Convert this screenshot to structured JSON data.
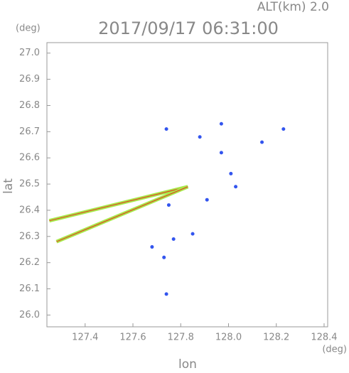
{
  "chart_data": {
    "type": "scatter",
    "title": "2017/09/17 06:31:00",
    "subtitle": "ALT(km) 2.0",
    "y_unit": "(deg)",
    "x_unit": "(deg)",
    "ylabel": "lat",
    "xlabel": "lon",
    "xlim": [
      127.24,
      128.415
    ],
    "ylim": [
      25.955,
      27.04
    ],
    "xticks": [
      127.4,
      127.6,
      127.8,
      {
        "value": 128,
        "label": "128.0"
      },
      128.2,
      128.4
    ],
    "yticks": [
      {
        "value": 26,
        "label": "26.0"
      },
      26.1,
      26.2,
      26.3,
      26.4,
      26.5,
      26.6,
      26.7,
      26.8,
      26.9,
      {
        "value": 27,
        "label": "27.0"
      }
    ],
    "series": [
      {
        "type": "line",
        "color": "#a8e84a",
        "x": [
          127.25,
          127.83
        ],
        "y": [
          26.36,
          26.49
        ]
      },
      {
        "type": "line",
        "color": "#a8e84a",
        "x": [
          127.28,
          127.83
        ],
        "y": [
          26.28,
          26.49
        ]
      },
      {
        "type": "scatter",
        "color": "#3355ee",
        "x": [
          127.74,
          127.88,
          127.97,
          127.97,
          128.01,
          128.03,
          128.14,
          128.23,
          127.75,
          127.74,
          127.91,
          127.73,
          127.68,
          127.85,
          127.77
        ],
        "y": [
          26.71,
          26.68,
          26.73,
          26.62,
          26.54,
          26.49,
          26.66,
          26.71,
          26.42,
          26.08,
          26.44,
          26.22,
          26.26,
          26.31,
          26.29
        ]
      }
    ]
  }
}
